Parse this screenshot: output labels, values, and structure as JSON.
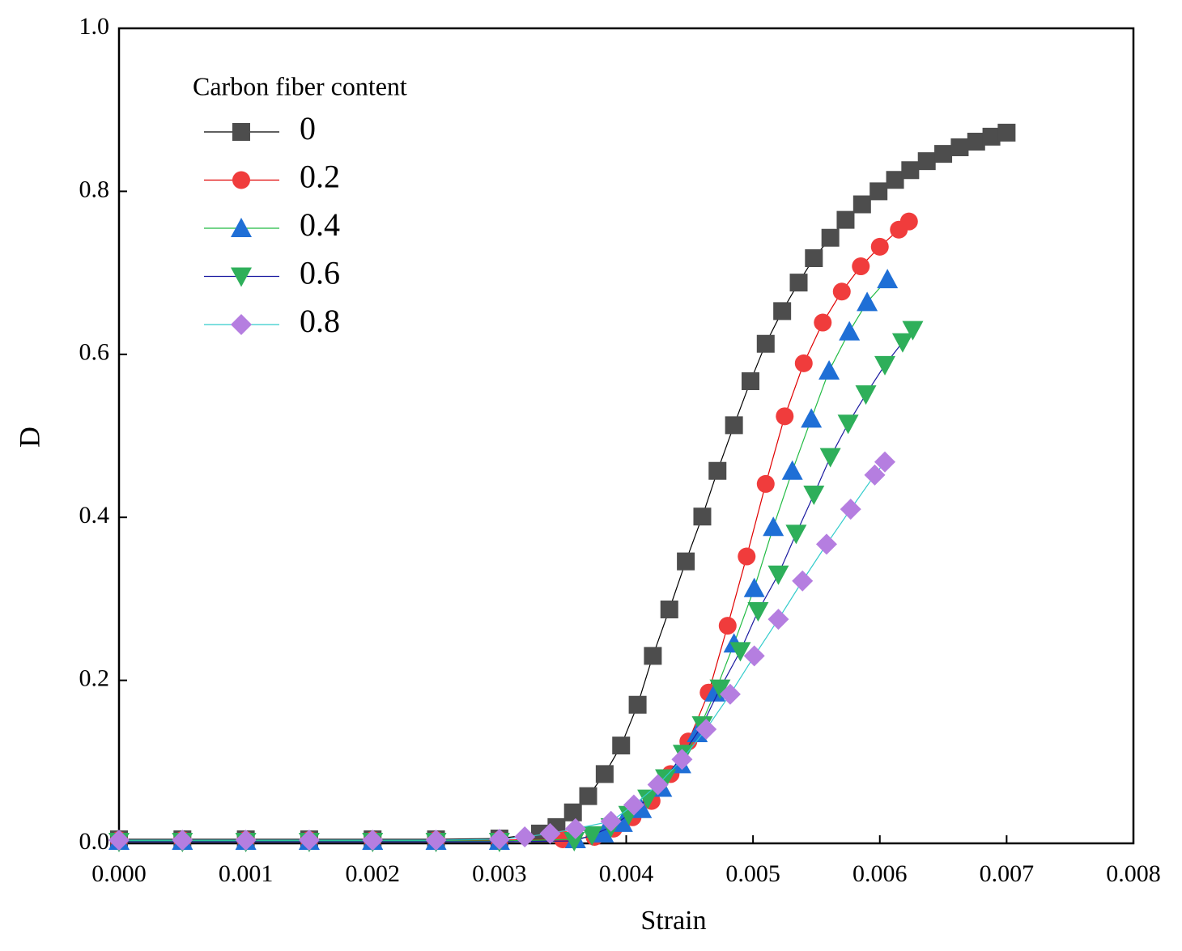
{
  "chart_data": {
    "type": "line",
    "xlabel": "Strain",
    "ylabel": "D",
    "legend_title": "Carbon fiber content",
    "legend": "upper left",
    "xlim": [
      0,
      0.008
    ],
    "xticks": [
      {
        "value": 0,
        "label": "0.000"
      },
      {
        "value": 0.001,
        "label": "0.001"
      },
      {
        "value": 0.002,
        "label": "0.002"
      },
      {
        "value": 0.003,
        "label": "0.003"
      },
      {
        "value": 0.004,
        "label": "0.004"
      },
      {
        "value": 0.005,
        "label": "0.005"
      },
      {
        "value": 0.006,
        "label": "0.006"
      },
      {
        "value": 0.007,
        "label": "0.007"
      },
      {
        "value": 0.008,
        "label": "0.008"
      }
    ],
    "ylim": [
      0,
      1
    ],
    "yticks": [
      {
        "value": 0,
        "label": "0.0"
      },
      0.2,
      0.4,
      0.6,
      0.8,
      {
        "value": 1,
        "label": "1.0"
      }
    ],
    "series": [
      {
        "name": "0",
        "color": "#4d4d4d",
        "line_color": "#000000",
        "marker": "square",
        "x": [
          0,
          0.0005,
          0.001,
          0.0015,
          0.002,
          0.0025,
          0.003,
          0.00332,
          0.00345,
          0.00358,
          0.0037,
          0.00383,
          0.00396,
          0.00409,
          0.00421,
          0.00434,
          0.00447,
          0.0046,
          0.00472,
          0.00485,
          0.00498,
          0.0051,
          0.00523,
          0.00536,
          0.00548,
          0.00561,
          0.00573,
          0.00586,
          0.00599,
          0.00612,
          0.00624,
          0.00637,
          0.0065,
          0.00663,
          0.00676,
          0.00688,
          0.007
        ],
        "values": [
          0.005,
          0.005,
          0.005,
          0.005,
          0.005,
          0.005,
          0.006,
          0.012,
          0.02,
          0.038,
          0.058,
          0.085,
          0.12,
          0.17,
          0.23,
          0.287,
          0.346,
          0.401,
          0.457,
          0.513,
          0.567,
          0.613,
          0.653,
          0.688,
          0.718,
          0.743,
          0.765,
          0.784,
          0.8,
          0.814,
          0.826,
          0.837,
          0.846,
          0.854,
          0.861,
          0.867,
          0.872
        ]
      },
      {
        "name": "0.2",
        "color": "#f03c3c",
        "line_color": "#e00000",
        "marker": "circle",
        "x": [
          0,
          0.0005,
          0.001,
          0.0015,
          0.002,
          0.0025,
          0.003,
          0.0035,
          0.00375,
          0.0039,
          0.00405,
          0.0042,
          0.00435,
          0.00449,
          0.00465,
          0.0048,
          0.00495,
          0.0051,
          0.00525,
          0.0054,
          0.00555,
          0.0057,
          0.00585,
          0.006,
          0.00615,
          0.00623
        ],
        "values": [
          0.004,
          0.004,
          0.004,
          0.004,
          0.004,
          0.004,
          0.004,
          0.005,
          0.008,
          0.018,
          0.032,
          0.052,
          0.085,
          0.125,
          0.185,
          0.267,
          0.352,
          0.441,
          0.524,
          0.589,
          0.639,
          0.677,
          0.708,
          0.732,
          0.753,
          0.763
        ]
      },
      {
        "name": "0.4",
        "color": "#1f6fd6",
        "line_color": "#22bb44",
        "marker": "triangle-up",
        "x": [
          0,
          0.0005,
          0.001,
          0.0015,
          0.002,
          0.0025,
          0.003,
          0.0036,
          0.00382,
          0.00397,
          0.00412,
          0.00428,
          0.00443,
          0.00456,
          0.0047,
          0.00485,
          0.00501,
          0.00516,
          0.00531,
          0.00546,
          0.0056,
          0.00576,
          0.0059,
          0.00606
        ],
        "values": [
          0.003,
          0.003,
          0.003,
          0.003,
          0.003,
          0.003,
          0.003,
          0.005,
          0.012,
          0.025,
          0.042,
          0.068,
          0.097,
          0.135,
          0.185,
          0.245,
          0.313,
          0.388,
          0.457,
          0.521,
          0.58,
          0.628,
          0.664,
          0.692
        ]
      },
      {
        "name": "0.6",
        "color": "#2eaf5a",
        "line_color": "#1a1aa0",
        "marker": "triangle-down",
        "x": [
          0,
          0.0005,
          0.001,
          0.0015,
          0.002,
          0.0025,
          0.003,
          0.00359,
          0.00373,
          0.00388,
          0.00402,
          0.00417,
          0.00431,
          0.00445,
          0.0046,
          0.00474,
          0.0049,
          0.00504,
          0.0052,
          0.00534,
          0.00548,
          0.00561,
          0.00575,
          0.00589,
          0.00604,
          0.00618,
          0.00626
        ],
        "values": [
          0.002,
          0.002,
          0.002,
          0.002,
          0.002,
          0.002,
          0.002,
          0.003,
          0.01,
          0.02,
          0.035,
          0.055,
          0.08,
          0.11,
          0.145,
          0.19,
          0.236,
          0.285,
          0.33,
          0.38,
          0.428,
          0.474,
          0.515,
          0.551,
          0.587,
          0.615,
          0.63
        ]
      },
      {
        "name": "0.8",
        "color": "#b57ee0",
        "line_color": "#33cccc",
        "marker": "diamond",
        "x": [
          0,
          0.0005,
          0.001,
          0.0015,
          0.002,
          0.0025,
          0.003,
          0.0032,
          0.0034,
          0.0036,
          0.00388,
          0.00406,
          0.00425,
          0.00444,
          0.00463,
          0.00482,
          0.00501,
          0.0052,
          0.00539,
          0.00558,
          0.00577,
          0.00596,
          0.00604
        ],
        "values": [
          0.004,
          0.004,
          0.004,
          0.004,
          0.004,
          0.004,
          0.005,
          0.008,
          0.012,
          0.018,
          0.027,
          0.047,
          0.072,
          0.103,
          0.14,
          0.183,
          0.23,
          0.275,
          0.322,
          0.367,
          0.41,
          0.452,
          0.468
        ]
      }
    ]
  }
}
